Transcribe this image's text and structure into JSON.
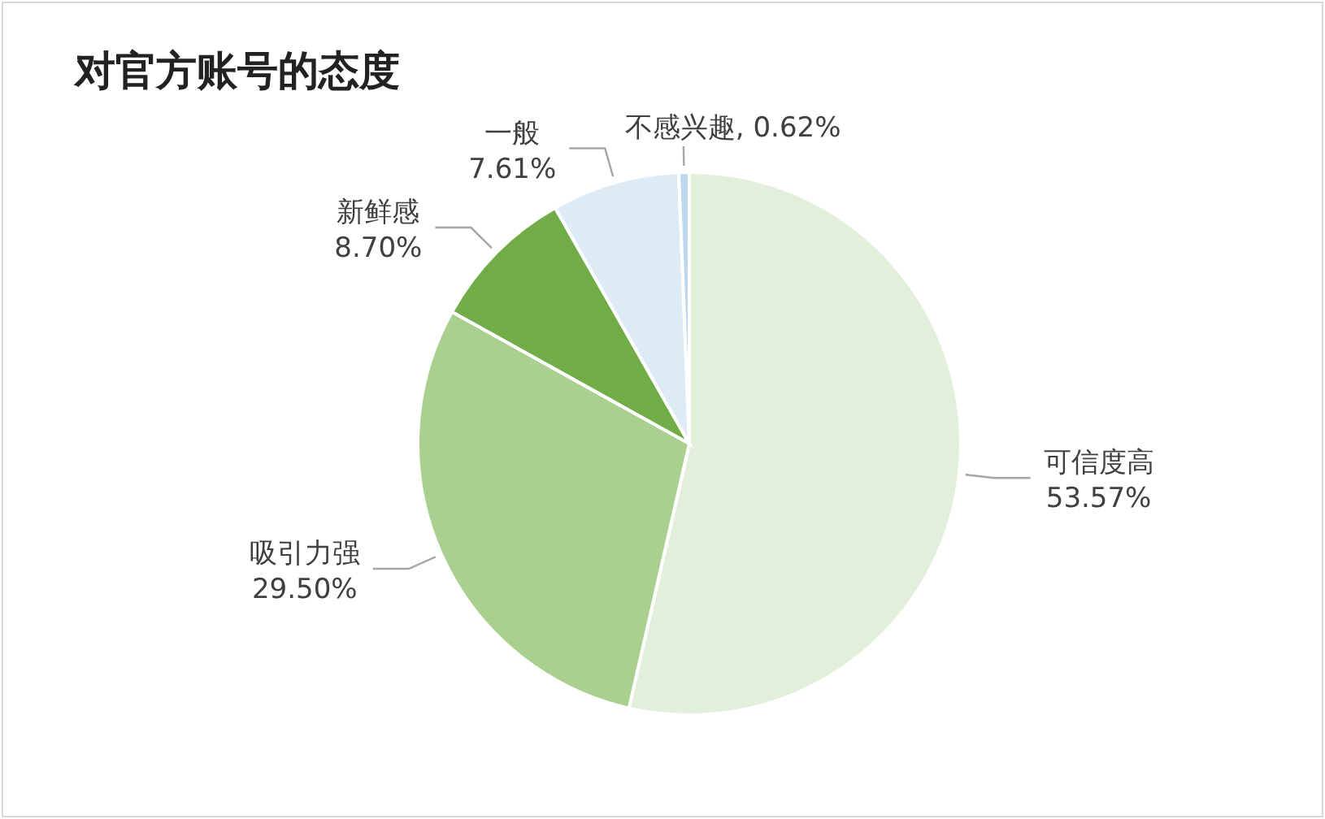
{
  "chart_data": {
    "type": "pie",
    "title": "对官方账号的态度",
    "categories": [
      "可信度高",
      "吸引力强",
      "新鲜感",
      "一般",
      "不感兴趣"
    ],
    "values": [
      53.57,
      29.5,
      8.7,
      7.61,
      0.62
    ],
    "value_labels": [
      "53.57%",
      "29.50%",
      "8.70%",
      "7.61%",
      "0.62%"
    ],
    "colors": [
      "#e2efda",
      "#a9d08e",
      "#70ad47",
      "#ddebf7",
      "#bdd7ee"
    ]
  }
}
